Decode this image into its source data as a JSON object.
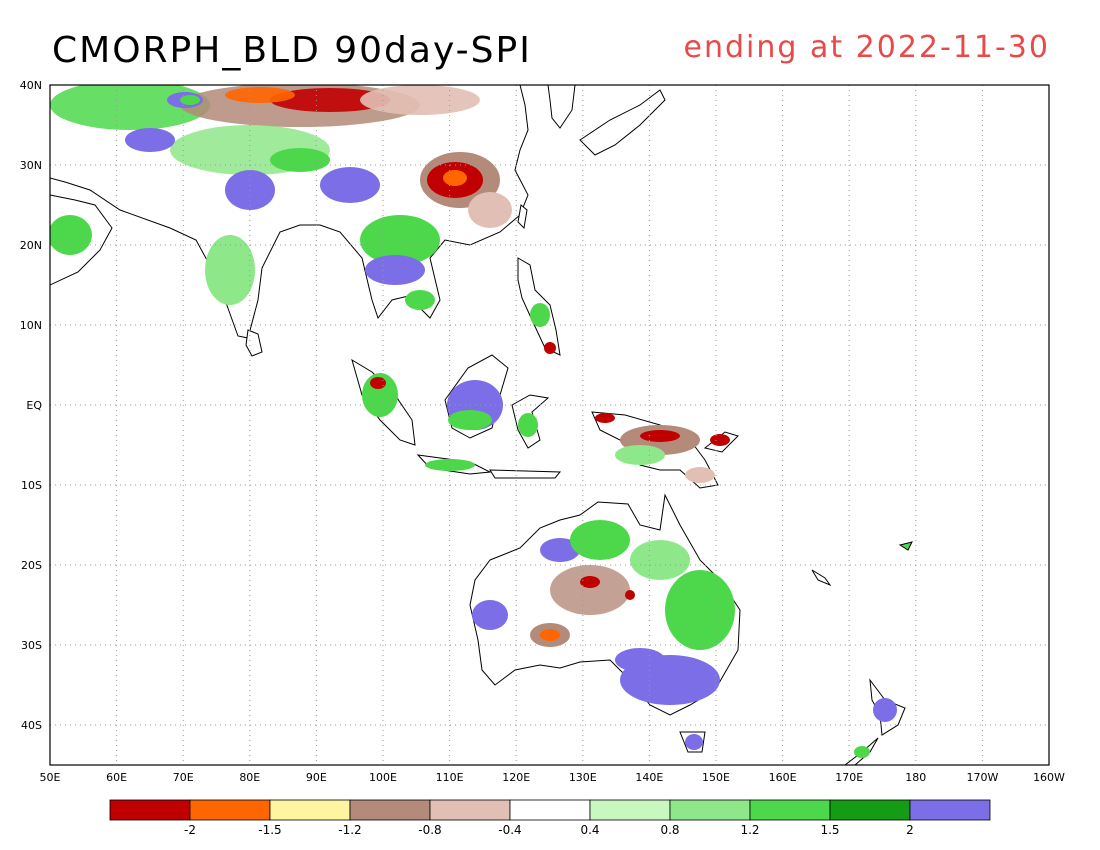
{
  "title": "CMORPH_BLD 90day-SPI",
  "subtitle": "ending at 2022-11-30",
  "colors": {
    "title": "#000000",
    "subtitle": "#e84a4a",
    "grid": "#9a9a9a",
    "coast": "#000000"
  },
  "map": {
    "region": "Asia-Pacific / Australia",
    "lon_range": [
      50,
      200
    ],
    "lat_range": [
      -45,
      40
    ],
    "lat_labels": [
      "40N",
      "30N",
      "20N",
      "10N",
      "EQ",
      "10S",
      "20S",
      "30S",
      "40S"
    ],
    "lon_labels": [
      "50E",
      "60E",
      "70E",
      "80E",
      "90E",
      "100E",
      "110E",
      "120E",
      "130E",
      "140E",
      "150E",
      "160E",
      "170E",
      "180",
      "170W",
      "160W"
    ]
  },
  "legend": {
    "colors": [
      "#c00000",
      "#ff6600",
      "#fff4a0",
      "#b48a7a",
      "#e2bfb4",
      "#ffffff",
      "#c8f7c0",
      "#8ee88a",
      "#4cd84a",
      "#149c14",
      "#7b6ee6"
    ],
    "labels": [
      "-2",
      "-1.5",
      "-1.2",
      "-0.8",
      "-0.4",
      "0.4",
      "0.8",
      "1.2",
      "1.5",
      "2"
    ]
  }
}
